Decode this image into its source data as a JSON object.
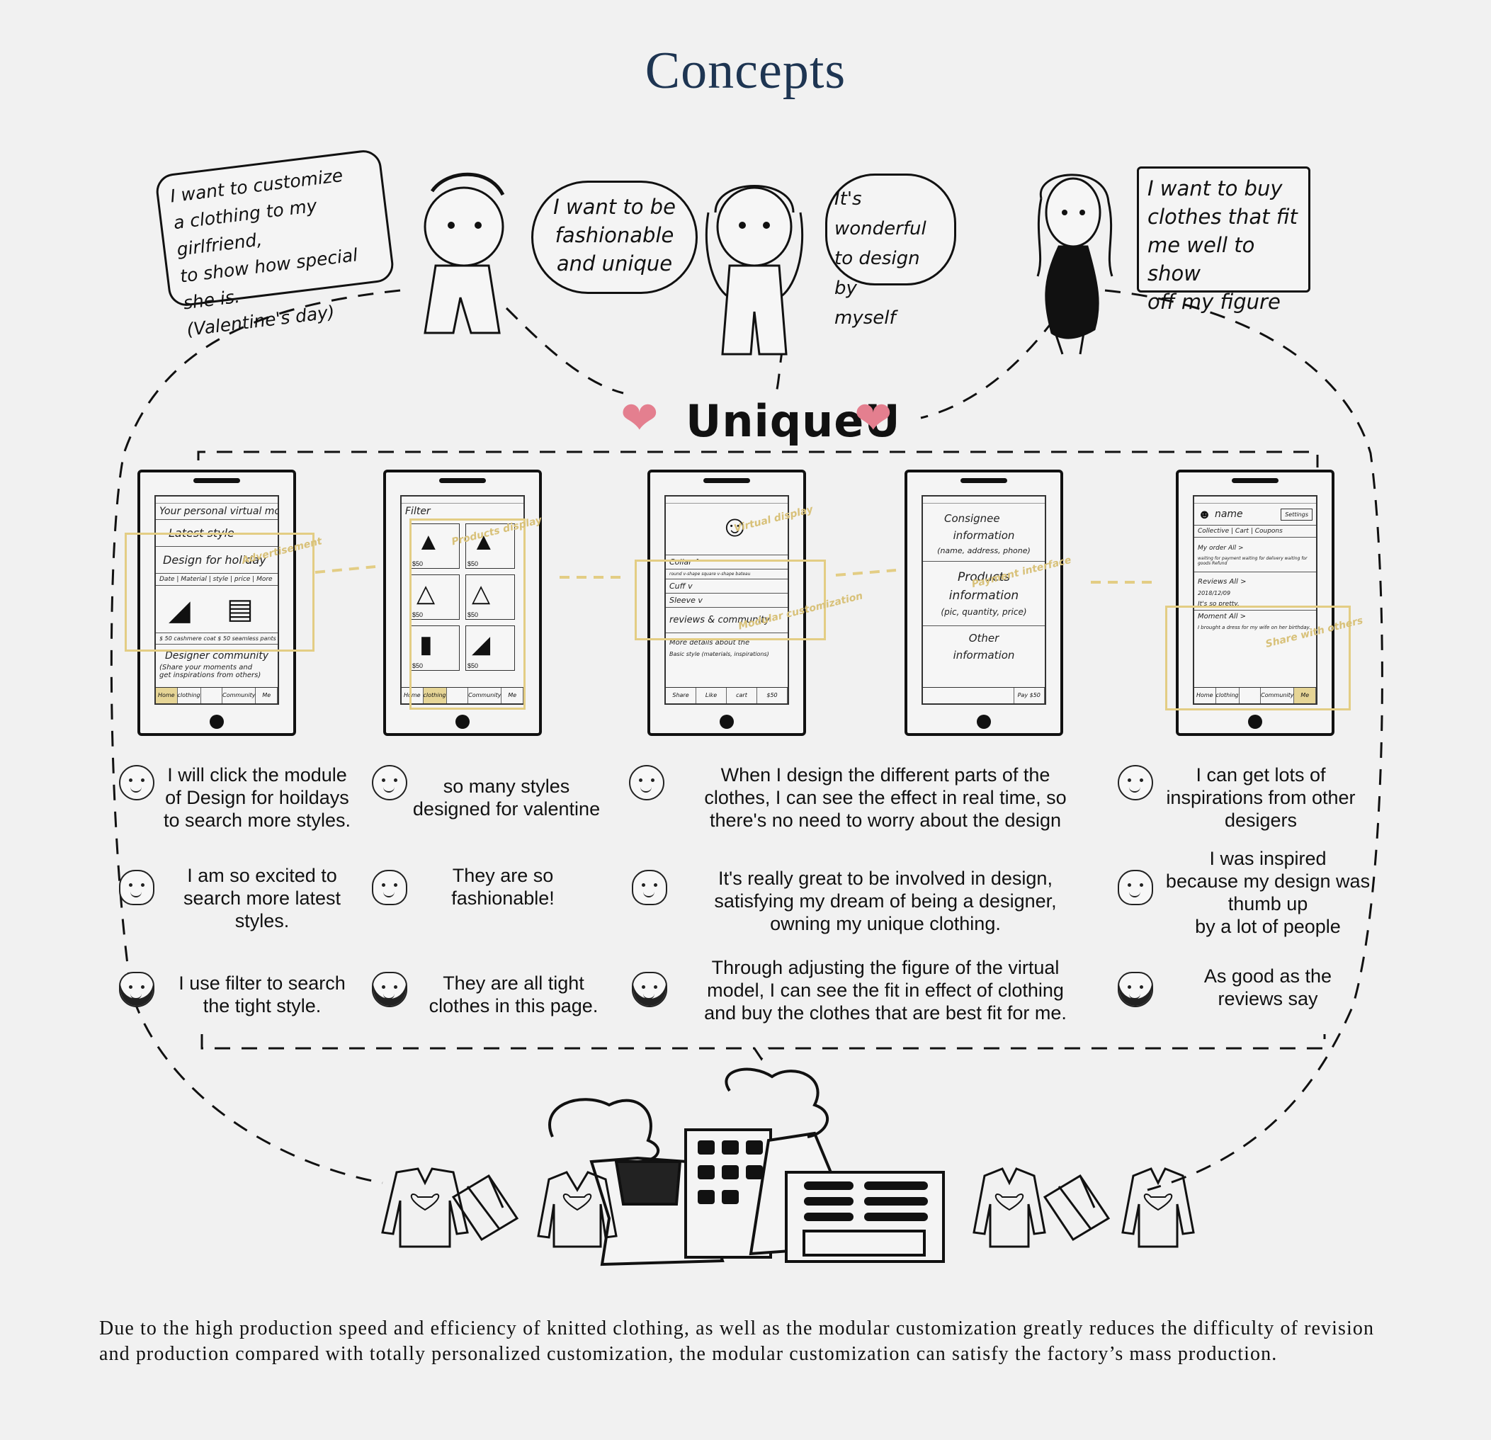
{
  "title": "Concepts",
  "bubbles": {
    "boy": [
      "I want to customize",
      "a clothing to my girlfriend,",
      "to show how special she is.",
      "(Valentine's day)"
    ],
    "girl_left": [
      "I want to be",
      "fashionable",
      "and unique"
    ],
    "girl_right": [
      "It's wonderful",
      "to design by",
      "myself"
    ],
    "woman": [
      "I want to buy",
      "clothes that fit",
      "me well to show",
      "off my figure"
    ]
  },
  "brand": "UniqueU",
  "phones": [
    {
      "lines": [
        "Your personal virtual model",
        "Latest style",
        "Design for holiday",
        "Date | Material | style | price | More",
        "$ 50 cashmere coat    $ 50 seamless pants",
        "Designer community",
        "(Share your moments and",
        "get inspirations from others)"
      ],
      "tabs": [
        "Home",
        "clothing",
        "",
        "Community",
        "Me"
      ],
      "note": "Advertisement"
    },
    {
      "lines": [
        "Filter",
        "$50",
        "$50",
        "$50",
        "$50",
        "$50",
        "$50"
      ],
      "tabs": [
        "Home",
        "clothing",
        "",
        "Community",
        "Me"
      ],
      "note": "Products display"
    },
    {
      "lines": [
        "Collar ^",
        "round  v-shape  square  v-shape  bateau",
        "Cuff v",
        "Sleeve v",
        "reviews & community",
        "More details about the",
        "Basic style (materials, inspirations)"
      ],
      "tabs": [
        "Share",
        "Like",
        "cart",
        "$50"
      ],
      "note": "Virtual display",
      "note2": "Modular customization"
    },
    {
      "lines": [
        "Consignee",
        "information",
        "(name, address, phone)",
        "Products",
        "information",
        "(pic, quantity, price)",
        "Other",
        "information"
      ],
      "tabs": [
        "",
        "",
        "",
        "Pay $50"
      ],
      "note": "Payment interface"
    },
    {
      "lines": [
        "name",
        "Settings",
        "Collective | Cart | Coupons",
        "My order   All >",
        "waiting for payment  waiting for delivery  waiting for goods  Refund",
        "Reviews   All >",
        "2018/12/09",
        "It's so pretty.",
        "Moment   All >",
        "I brought a dress for my wife on her birthday."
      ],
      "tabs": [
        "Home",
        "clothing",
        "",
        "Community",
        "Me"
      ],
      "note": "Share with others"
    }
  ],
  "captions": {
    "boy": [
      "I will click the module\nof Design for hoildays\nto search more styles.",
      "so many styles\ndesigned for valentine",
      "When I design the different parts of the\nclothes, I can see the effect in real time, so\nthere's no need to worry about the design",
      "I can get lots of\ninspirations from other\ndesigers"
    ],
    "girl": [
      "I am so excited to\nsearch more latest\nstyles.",
      "They are so\nfashionable!",
      "It's really great to be involved in design,\nsatisfying my dream of being a designer,\nowning my unique clothing.",
      "I was inspired\nbecause my design was\nthumb up\nby a lot of people"
    ],
    "woman": [
      "I use filter to search\nthe tight style.",
      "They are all tight\nclothes in this page.",
      "Through adjusting the figure of the virtual\nmodel, I can see the fit in effect of clothing\nand buy the clothes that are best fit for me.",
      "As good as the\nreviews say"
    ]
  },
  "footer": "Due to the high production speed and efficiency of knitted clothing, as well as the modular customization greatly reduces the difficulty of revision and production compared with totally personalized customization, the modular customization can satisfy the factory’s mass production.",
  "colors": {
    "title": "#1e3552",
    "highlight": "#e3cd84",
    "heart": "#e47f8f"
  }
}
